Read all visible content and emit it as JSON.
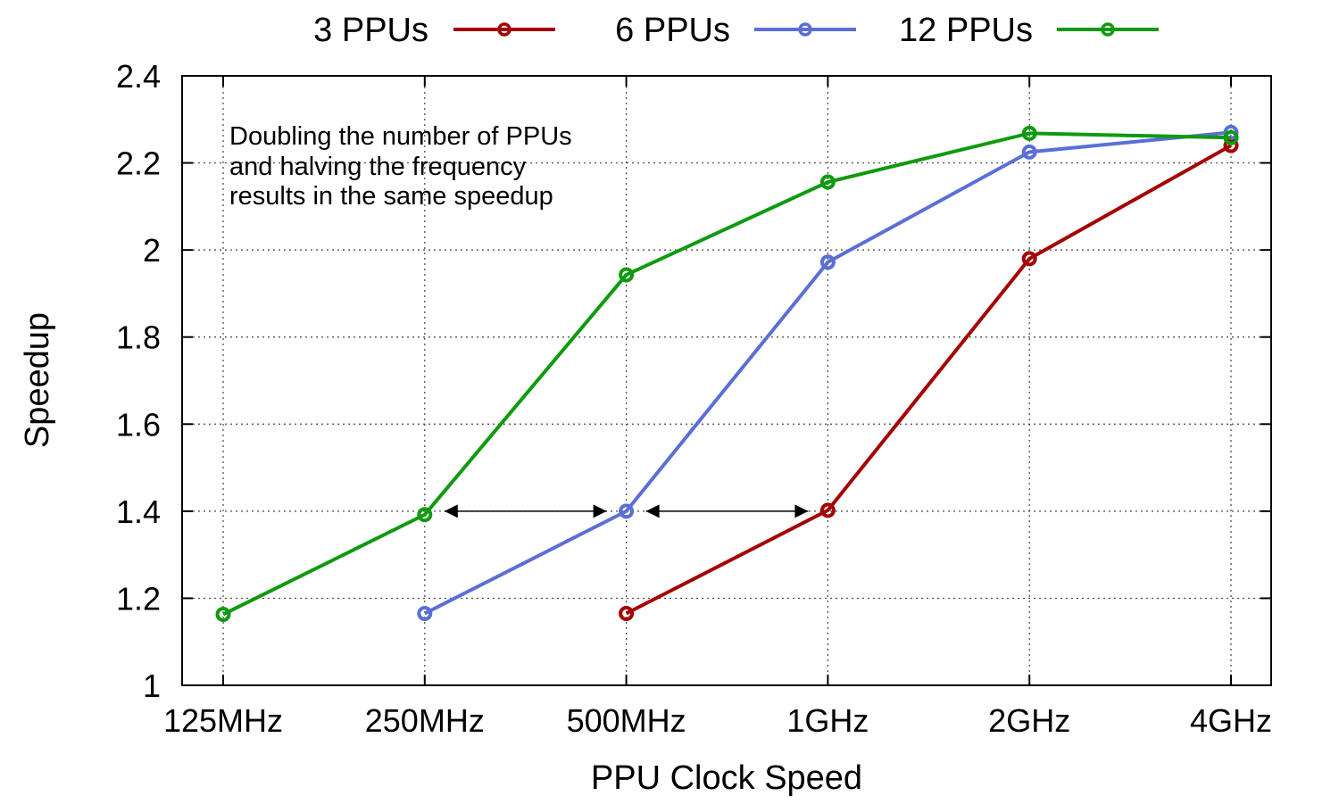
{
  "chart_data": {
    "type": "line",
    "xlabel": "PPU Clock Speed",
    "ylabel": "Speedup",
    "categories": [
      "125MHz",
      "250MHz",
      "500MHz",
      "1GHz",
      "2GHz",
      "4GHz"
    ],
    "ylim": [
      1,
      2.4
    ],
    "yticks": [
      "1",
      "1.2",
      "1.4",
      "1.6",
      "1.8",
      "2",
      "2.2",
      "2.4"
    ],
    "grid": true,
    "legend_position": "top",
    "series": [
      {
        "name": "3 PPUs",
        "color": "#a50000",
        "values": [
          null,
          null,
          1.165,
          1.402,
          1.98,
          2.24
        ]
      },
      {
        "name": "6 PPUs",
        "color": "#5a6fd6",
        "values": [
          null,
          1.165,
          1.4,
          1.972,
          2.225,
          2.27
        ]
      },
      {
        "name": "12 PPUs",
        "color": "#0f9a0f",
        "values": [
          1.163,
          1.392,
          1.943,
          2.156,
          2.268,
          2.258
        ]
      }
    ],
    "annotation": {
      "lines": [
        "Doubling the number of PPUs",
        "and halving the frequency",
        "results in the same speedup"
      ]
    },
    "arrows": [
      {
        "from_x": 1,
        "to_x": 2,
        "y": 1.4
      },
      {
        "from_x": 2,
        "to_x": 3,
        "y": 1.4
      }
    ]
  }
}
